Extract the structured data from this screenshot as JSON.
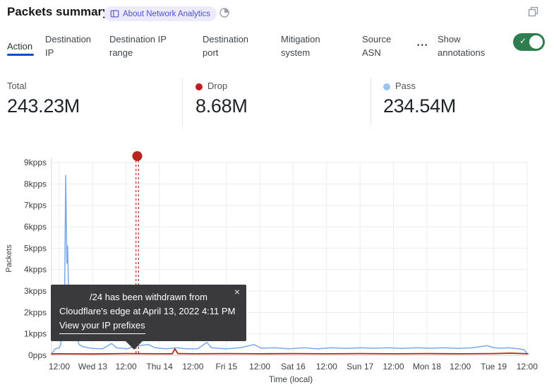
{
  "header": {
    "title": "Packets summary",
    "badge_label": "About Network Analytics"
  },
  "icons": {
    "badge": "book-icon",
    "header_timer": "time-remaining-icon",
    "window_action": "duplicate-window-icon",
    "tabs_more": "more-options-ellipsis",
    "toggle_check": "checkmark-icon"
  },
  "tabs": {
    "items": [
      {
        "label": "Action",
        "active": true
      },
      {
        "label": "Destination IP",
        "active": false
      },
      {
        "label": "Destination IP range",
        "active": false
      },
      {
        "label": "Destination port",
        "active": false
      },
      {
        "label": "Mitigation system",
        "active": false
      },
      {
        "label": "Source ASN",
        "active": false
      }
    ],
    "more_label": "•••",
    "show_annotations_label": "Show annotations",
    "annotations_on": true
  },
  "colors": {
    "accent_blue": "#0052cc",
    "toggle_green": "#2e7d4f",
    "drop_red": "#b5271d",
    "drop_dot": "#c11c1c",
    "pass_dot": "#9cc3f0",
    "pass_line": "#7aa9e8",
    "tooltip_bg": "#3a3a3c"
  },
  "stats": {
    "total": {
      "label": "Total",
      "value": "243.23M"
    },
    "drop": {
      "label": "Drop",
      "value": "8.68M",
      "color": "#c11c1c"
    },
    "pass": {
      "label": "Pass",
      "value": "234.54M",
      "color": "#9cc3f0"
    }
  },
  "tooltip": {
    "line1": "/24 has been withdrawn from",
    "line2": "Cloudflare's edge at April 13, 2022 4:11 PM",
    "link": "View your IP prefixes",
    "close": "×"
  },
  "chart_data": {
    "type": "line",
    "title": "",
    "xlabel": "Time (local)",
    "ylabel": "Packets",
    "grid": true,
    "legend_position": "stats-row-above-chart",
    "x_axis": {
      "note": "hours measured from Tue Apr 12 2022 12:00 local",
      "tick_hours": [
        0,
        12,
        24,
        36,
        48,
        60,
        72,
        84,
        96,
        108,
        120,
        132,
        144,
        156,
        168
      ],
      "tick_labels": [
        "12:00",
        "Wed 13",
        "12:00",
        "Thu 14",
        "12:00",
        "Fri 15",
        "12:00",
        "Sat 16",
        "12:00",
        "Sun 17",
        "12:00",
        "Mon 18",
        "12:00",
        "Tue 19",
        "12:00"
      ],
      "range_hours": [
        -2.8,
        168.4
      ]
    },
    "y_axis": {
      "tick_labels": [
        "0pps",
        "1kpps",
        "2kpps",
        "3kpps",
        "4kpps",
        "5kpps",
        "6kpps",
        "7kpps",
        "8kpps",
        "9kpps"
      ],
      "range_kpps": [
        0,
        9.3
      ]
    },
    "series": [
      {
        "name": "Pass",
        "color": "#7aa9e8",
        "unit": "kpps",
        "points": [
          [
            -2.8,
            0.05
          ],
          [
            -1.5,
            0.3
          ],
          [
            0,
            0.35
          ],
          [
            0.5,
            0.5
          ],
          [
            1.3,
            1.4
          ],
          [
            1.8,
            1.0
          ],
          [
            2.3,
            8.4
          ],
          [
            2.7,
            4.3
          ],
          [
            3.0,
            5.1
          ],
          [
            3.6,
            1.3
          ],
          [
            4.8,
            1.2
          ],
          [
            5.8,
            1.1
          ],
          [
            7.1,
            0.5
          ],
          [
            8.6,
            0.4
          ],
          [
            11.7,
            0.32
          ],
          [
            15.5,
            0.3
          ],
          [
            18.8,
            0.55
          ],
          [
            20.5,
            0.35
          ],
          [
            24.3,
            0.3
          ],
          [
            28.4,
            0.45
          ],
          [
            31.9,
            0.5
          ],
          [
            34.5,
            0.35
          ],
          [
            38.3,
            0.3
          ],
          [
            42.1,
            0.35
          ],
          [
            45.9,
            0.3
          ],
          [
            49.7,
            0.3
          ],
          [
            53.0,
            0.6
          ],
          [
            54.7,
            0.35
          ],
          [
            59.8,
            0.3
          ],
          [
            64.9,
            0.35
          ],
          [
            69.9,
            0.5
          ],
          [
            72.5,
            0.33
          ],
          [
            77.5,
            0.35
          ],
          [
            82.6,
            0.3
          ],
          [
            87.7,
            0.35
          ],
          [
            92.8,
            0.3
          ],
          [
            97.8,
            0.35
          ],
          [
            102.9,
            0.32
          ],
          [
            108.0,
            0.35
          ],
          [
            113.0,
            0.33
          ],
          [
            118.1,
            0.35
          ],
          [
            123.2,
            0.32
          ],
          [
            128.2,
            0.35
          ],
          [
            133.3,
            0.33
          ],
          [
            138.4,
            0.35
          ],
          [
            143.4,
            0.32
          ],
          [
            148.5,
            0.35
          ],
          [
            153.6,
            0.45
          ],
          [
            156.1,
            0.35
          ],
          [
            158.6,
            0.33
          ],
          [
            161.2,
            0.35
          ],
          [
            165.0,
            0.3
          ],
          [
            167.0,
            0.25
          ],
          [
            167.9,
            0.1
          ]
        ]
      },
      {
        "name": "Drop",
        "color": "#b5271d",
        "unit": "kpps",
        "points": [
          [
            -2.8,
            0.06
          ],
          [
            0,
            0.07
          ],
          [
            12,
            0.06
          ],
          [
            24,
            0.08
          ],
          [
            36,
            0.07
          ],
          [
            40.6,
            0.07
          ],
          [
            41.5,
            0.3
          ],
          [
            42.6,
            0.08
          ],
          [
            48,
            0.07
          ],
          [
            60,
            0.08
          ],
          [
            72,
            0.07
          ],
          [
            84,
            0.08
          ],
          [
            96,
            0.07
          ],
          [
            108,
            0.08
          ],
          [
            120,
            0.07
          ],
          [
            132,
            0.08
          ],
          [
            144,
            0.07
          ],
          [
            156,
            0.08
          ],
          [
            162,
            0.1
          ],
          [
            168.3,
            0.07
          ]
        ]
      }
    ],
    "annotation": {
      "x_hours": 28.0,
      "color": "#b5271d",
      "style": "red dot above plot with double dashed vertical line",
      "text_line1": "/24 has been withdrawn from",
      "text_line2": "Cloudflare's edge at April 13, 2022 4:11 PM",
      "link": "View your IP prefixes"
    }
  }
}
